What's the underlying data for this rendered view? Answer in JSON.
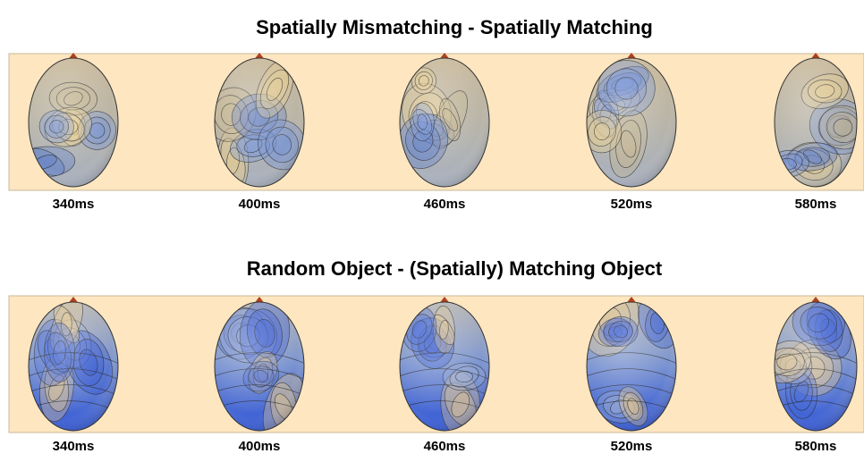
{
  "panels": [
    {
      "title": "Spatially Mismatching - Spatially Matching",
      "labels": [
        "340ms",
        "400ms",
        "460ms",
        "520ms",
        "580ms"
      ]
    },
    {
      "title": "Random Object - (Spatially) Matching Object",
      "labels": [
        "340ms",
        "400ms",
        "460ms",
        "520ms",
        "580ms"
      ]
    }
  ]
}
